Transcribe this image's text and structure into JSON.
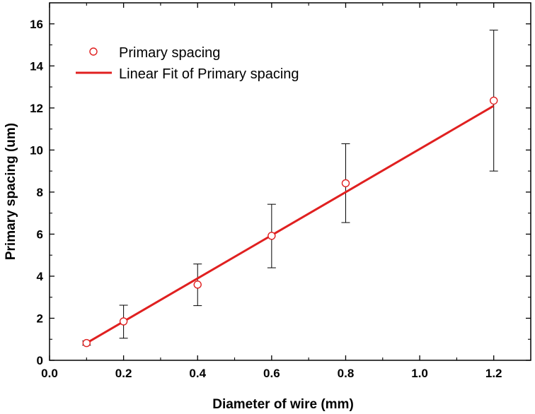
{
  "chart_data": {
    "type": "scatter",
    "title": "",
    "xlabel": "Diameter of wire (mm)",
    "ylabel": "Primary spacing (um)",
    "xlim": [
      0.0,
      1.3
    ],
    "ylim": [
      0,
      17
    ],
    "xticks": [
      0.0,
      0.2,
      0.4,
      0.6,
      0.8,
      1.0,
      1.2
    ],
    "xtick_labels": [
      "0.0",
      "0.2",
      "0.4",
      "0.6",
      "0.8",
      "1.0",
      "1.2"
    ],
    "yticks": [
      0,
      2,
      4,
      6,
      8,
      10,
      12,
      14,
      16
    ],
    "ytick_labels": [
      "0",
      "2",
      "4",
      "6",
      "8",
      "10",
      "12",
      "14",
      "16"
    ],
    "series": [
      {
        "name": "Primary spacing",
        "kind": "scatter",
        "color": "#e02020",
        "x": [
          0.1,
          0.2,
          0.4,
          0.6,
          0.8,
          1.2
        ],
        "y": [
          0.82,
          1.85,
          3.6,
          5.92,
          8.42,
          12.35
        ],
        "error_low": [
          0.72,
          1.05,
          2.6,
          4.4,
          6.55,
          9.0
        ],
        "error_high": [
          0.92,
          2.62,
          4.58,
          7.42,
          10.3,
          15.7
        ]
      },
      {
        "name": "Linear Fit of Primary spacing",
        "kind": "line",
        "color": "#e02020",
        "x": [
          0.1,
          1.2
        ],
        "y": [
          0.82,
          12.1
        ]
      }
    ],
    "legend": "top-left",
    "grid": false
  }
}
